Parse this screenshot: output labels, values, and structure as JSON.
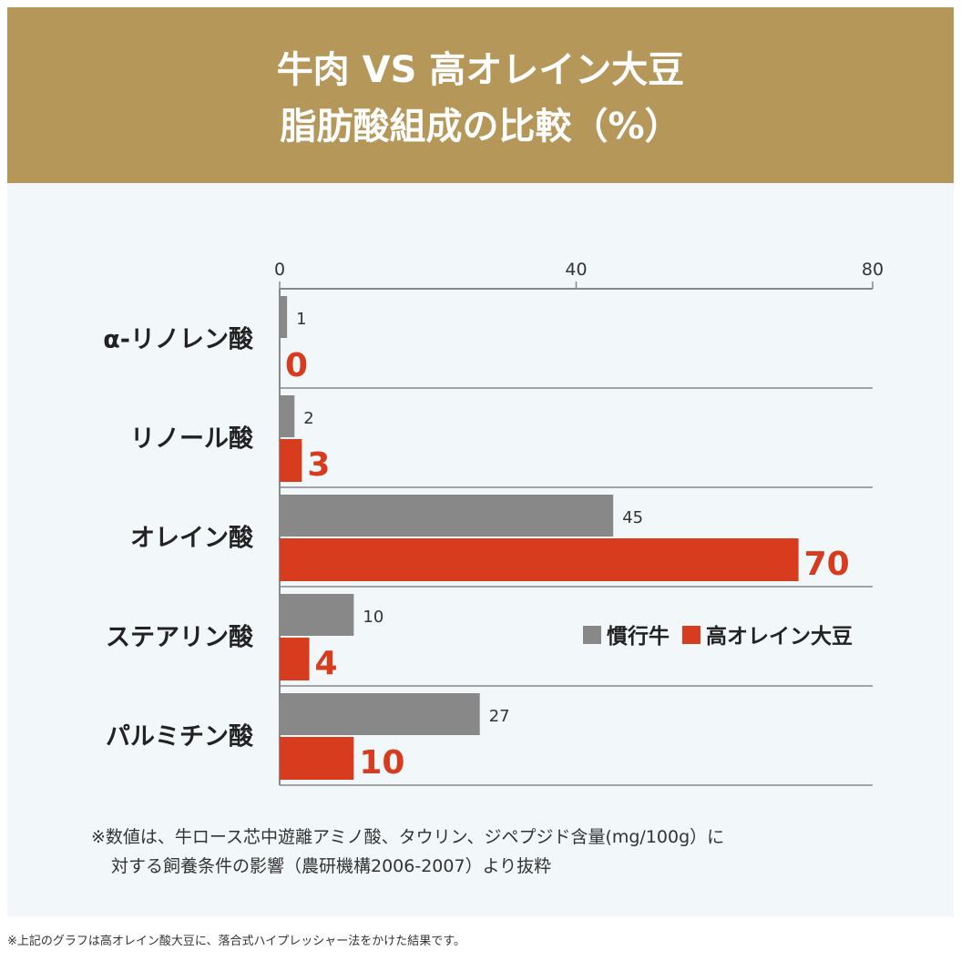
{
  "header": {
    "title_line1": "牛肉 VS 高オレイン大豆",
    "title_line2": "脂肪酸組成の比較（%）"
  },
  "chart_data": {
    "type": "bar",
    "orientation": "horizontal",
    "categories": [
      "α-リノレン酸",
      "リノール酸",
      "オレイン酸",
      "ステアリン酸",
      "パルミチン酸"
    ],
    "series": [
      {
        "name": "慣行牛",
        "color": "#888888",
        "values": [
          1,
          2,
          45,
          10,
          27
        ]
      },
      {
        "name": "高オレイン大豆",
        "color": "#d83c1e",
        "values": [
          0,
          3,
          70,
          4,
          10
        ]
      }
    ],
    "xlim": [
      0,
      80
    ],
    "xticks": [
      "0",
      "40",
      "80"
    ],
    "legend": "center-right"
  },
  "note": {
    "line1": "※数値は、牛ロース芯中遊離アミノ酸、タウリン、ジペプジド含量(mg/100g）に",
    "line2": "対する飼養条件の影響（農研機構2006-2007）より抜粋"
  },
  "footer": "※上記のグラフは高オレイン酸大豆に、落合式ハイプレッシャー法をかけた結果です。"
}
